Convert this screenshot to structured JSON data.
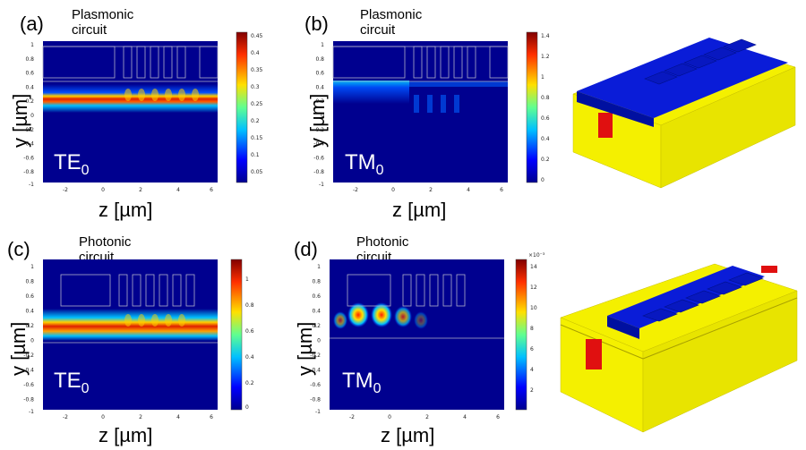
{
  "panels": [
    {
      "id": "a",
      "label": "(a)",
      "title": "Plasmonic circuit",
      "mode_main": "TE",
      "mode_sub": "0",
      "ylabel": "y [µm]",
      "xlabel": "z [µm]",
      "yticks": [
        "1",
        "0.8",
        "0.6",
        "0.4",
        "0.2",
        "0",
        "-0.2",
        "-0.4",
        "-0.6",
        "-0.8",
        "-1"
      ],
      "xticks": [
        "-2",
        "0",
        "2",
        "4",
        "6"
      ],
      "cbar_ticks": [
        "0.45",
        "0.4",
        "0.35",
        "0.3",
        "0.25",
        "0.2",
        "0.15",
        "0.1",
        "0.05"
      ],
      "cbar_exp": ""
    },
    {
      "id": "b",
      "label": "(b)",
      "title": "Plasmonic circuit",
      "mode_main": "TM",
      "mode_sub": "0",
      "ylabel": "y [µm]",
      "xlabel": "z [µm]",
      "yticks": [
        "1",
        "0.8",
        "0.6",
        "0.4",
        "0.2",
        "0",
        "-0.2",
        "-0.4",
        "-0.6",
        "-0.8",
        "-1"
      ],
      "xticks": [
        "-2",
        "0",
        "2",
        "4",
        "6"
      ],
      "cbar_ticks": [
        "1.4",
        "1.2",
        "1",
        "0.8",
        "0.6",
        "0.4",
        "0.2",
        "0"
      ],
      "cbar_exp": ""
    },
    {
      "id": "c",
      "label": "(c)",
      "title": "Photonic circuit",
      "mode_main": "TE",
      "mode_sub": "0",
      "ylabel": "y [µm]",
      "xlabel": "z [µm]",
      "yticks": [
        "1",
        "0.8",
        "0.6",
        "0.4",
        "0.2",
        "0",
        "-0.2",
        "-0.4",
        "-0.6",
        "-0.8",
        "-1"
      ],
      "xticks": [
        "-2",
        "0",
        "2",
        "4",
        "6"
      ],
      "cbar_ticks": [
        "1",
        "0.8",
        "0.6",
        "0.4",
        "0.2",
        "0"
      ],
      "cbar_exp": ""
    },
    {
      "id": "d",
      "label": "(d)",
      "title": "Photonic circuit",
      "mode_main": "TM",
      "mode_sub": "0",
      "ylabel": "y [µm]",
      "xlabel": "z [µm]",
      "yticks": [
        "1",
        "0.8",
        "0.6",
        "0.4",
        "0.2",
        "0",
        "-0.2",
        "-0.4",
        "-0.6",
        "-0.8",
        "-1"
      ],
      "xticks": [
        "-2",
        "0",
        "2",
        "4",
        "6"
      ],
      "cbar_ticks": [
        "14",
        "12",
        "10",
        "8",
        "6",
        "4",
        "2"
      ],
      "cbar_exp": "×10⁻³"
    }
  ],
  "colors": {
    "field_bg": "#00008f",
    "wire": "#b0b0c8",
    "gold": "#f4f000",
    "blue_block": "#0a1cd8",
    "red_port": "#e01010"
  }
}
